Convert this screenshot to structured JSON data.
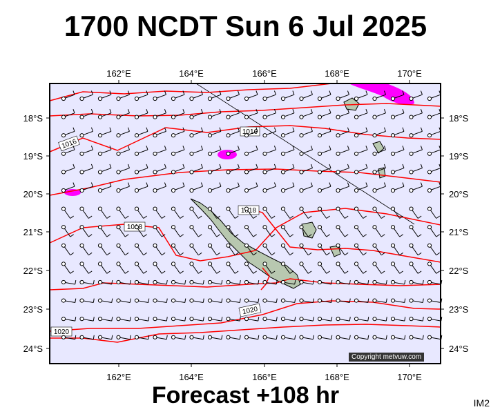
{
  "title": "1700 NCDT Sun 6 Jul 2025",
  "footer": "Forecast +108 hr",
  "corner_label": "IM2",
  "copyright": "Copyright metvuw.com",
  "lon_ticks": [
    "162°E",
    "164°E",
    "166°E",
    "168°E",
    "170°E"
  ],
  "lat_ticks": [
    "18°S",
    "19°S",
    "20°S",
    "21°S",
    "22°S",
    "23°S",
    "24°S"
  ],
  "isobar_labels": [
    "1016",
    "1016",
    "1018",
    "1018",
    "1020",
    "1020"
  ],
  "colors": {
    "sea": "#e8e8ff",
    "land": "#b8c8b0",
    "isobar": "#ff0000",
    "rain": "#ff00ff",
    "barb": "#000000"
  }
}
